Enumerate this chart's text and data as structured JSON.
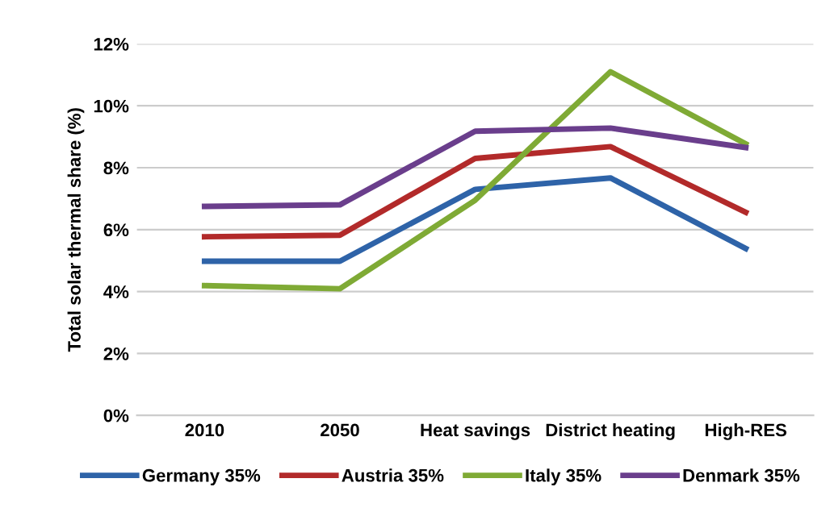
{
  "chart_data": {
    "type": "line",
    "ylabel": "Total solar thermal share (%)",
    "categories": [
      "2010",
      "2050",
      "Heat savings",
      "District heating",
      "High-RES"
    ],
    "series": [
      {
        "name": "Germany 35%",
        "color": "#2e63a8",
        "values": [
          4.98,
          4.98,
          7.3,
          7.67,
          5.39
        ]
      },
      {
        "name": "Austria 35%",
        "color": "#b22a2a",
        "values": [
          5.77,
          5.82,
          8.3,
          8.68,
          6.56
        ]
      },
      {
        "name": "Italy 35%",
        "color": "#7faa35",
        "values": [
          4.19,
          4.09,
          6.95,
          11.1,
          8.77
        ]
      },
      {
        "name": "Denmark 35%",
        "color": "#6a3e8c",
        "values": [
          6.75,
          6.8,
          9.18,
          9.28,
          8.65
        ]
      }
    ],
    "ylim": [
      0,
      12
    ],
    "yticks": [
      {
        "value": 0,
        "label": "0%"
      },
      {
        "value": 2,
        "label": "2%"
      },
      {
        "value": 4,
        "label": "4%"
      },
      {
        "value": 6,
        "label": "6%"
      },
      {
        "value": 8,
        "label": "8%"
      },
      {
        "value": 10,
        "label": "10%"
      },
      {
        "value": 12,
        "label": "12%"
      }
    ],
    "grid": "y",
    "legend": "bottom",
    "marker": "none",
    "line_style": "solid"
  }
}
